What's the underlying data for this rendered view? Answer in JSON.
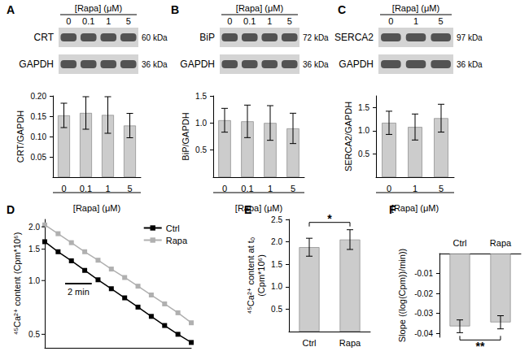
{
  "blots": [
    {
      "header": "[Rapa] (μM)",
      "lanes": [
        "0",
        "0.1",
        "1",
        "5"
      ],
      "rows": [
        {
          "protein": "CRT",
          "size": "60 kDa"
        },
        {
          "protein": "GAPDH",
          "size": "36 kDa"
        }
      ]
    },
    {
      "header": "[Rapa] (μM)",
      "lanes": [
        "0",
        "0.1",
        "1",
        "5"
      ],
      "rows": [
        {
          "protein": "BiP",
          "size": "72 kDa"
        },
        {
          "protein": "GAPDH",
          "size": "36 kDa"
        }
      ]
    },
    {
      "header": "[Rapa] (μM)",
      "lanes": [
        "0",
        "1",
        "5"
      ],
      "rows": [
        {
          "protein": "SERCA2",
          "size": "97 kDa"
        },
        {
          "protein": "GAPDH",
          "size": "36 kDa"
        }
      ]
    }
  ],
  "chart_data": [
    {
      "panel": "A",
      "type": "bar",
      "categories": [
        "0",
        "0.1",
        "1",
        "5"
      ],
      "values": [
        0.152,
        0.158,
        0.153,
        0.127
      ],
      "errors": [
        0.03,
        0.04,
        0.045,
        0.03
      ],
      "color": "#cccccc",
      "ylabel": "CRT/GAPDH",
      "xlabel": "[Rapa] (μM)",
      "ylim": [
        0,
        0.2
      ],
      "yticks": [
        0.05,
        {
          "value": 0.1,
          "label": "0.10"
        },
        0.15,
        {
          "value": 0.2,
          "label": "0.20"
        }
      ],
      "grid": false
    },
    {
      "panel": "B",
      "type": "bar",
      "categories": [
        "0",
        "0.1",
        "1",
        "5"
      ],
      "values": [
        1.05,
        1.03,
        1.0,
        0.9
      ],
      "errors": [
        0.22,
        0.3,
        0.32,
        0.28
      ],
      "color": "#cccccc",
      "ylabel": "BiP/GAPDH",
      "xlabel": "[Rapa] (μM)",
      "ylim": [
        0,
        1.5
      ],
      "yticks": [
        0.5,
        {
          "value": 1,
          "label": "1.0"
        },
        1.5
      ],
      "grid": false
    },
    {
      "panel": "C",
      "type": "bar",
      "categories": [
        "0",
        "1",
        "5"
      ],
      "values": [
        1.17,
        1.08,
        1.27
      ],
      "errors": [
        0.25,
        0.28,
        0.3
      ],
      "color": "#cccccc",
      "ylabel": "SERCA2/GAPDH",
      "xlabel": "[Rapa] (μM)",
      "ylim": [
        0,
        1.75
      ],
      "yticks": [
        0.5,
        {
          "value": 1,
          "label": "1.0"
        },
        1.5
      ],
      "grid": false
    },
    {
      "panel": "D",
      "type": "line",
      "log": "y",
      "x": [
        0,
        1,
        2,
        3,
        4,
        5,
        6,
        7,
        8,
        9,
        10,
        11
      ],
      "xlim": [
        0,
        11
      ],
      "series": [
        {
          "name": "Ctrl",
          "color": "#000000",
          "marker": "square",
          "line_style": "solid",
          "values": [
            1.65,
            1.45,
            1.29,
            1.14,
            1.01,
            0.9,
            0.8,
            0.71,
            0.63,
            0.56,
            0.5,
            0.45
          ]
        },
        {
          "name": "Rapa",
          "color": "#b0b0b0",
          "marker": "square",
          "line_style": "solid",
          "values": [
            2.05,
            1.83,
            1.63,
            1.45,
            1.3,
            1.16,
            1.04,
            0.93,
            0.83,
            0.74,
            0.66,
            0.58
          ]
        }
      ],
      "ylabel": "⁴⁵Ca²⁺ content (Cpm*10⁶)",
      "ylim": [
        0.42,
        2.2
      ],
      "yticks": [
        0.5,
        {
          "value": 1,
          "label": "1.0"
        },
        1.5,
        {
          "value": 2,
          "label": "2.0"
        }
      ],
      "tick_labels": "y",
      "legend": "upper right",
      "grid": false,
      "scale_bar": {
        "label": "2 min",
        "length": 2
      }
    },
    {
      "panel": "E",
      "type": "bar",
      "categories": [
        "Ctrl",
        "Rapa"
      ],
      "values": [
        1.88,
        2.05
      ],
      "errors": [
        0.2,
        0.22
      ],
      "color": "#cccccc",
      "ylabel": "⁴⁵Ca²⁺ content at t₀\n(Cpm*10⁶)",
      "ylim": [
        0,
        2.5
      ],
      "yticks": [
        0.5,
        {
          "value": 1,
          "label": "1.0"
        },
        1.5,
        {
          "value": 2,
          "label": "2.0"
        },
        2.5
      ],
      "grid": false,
      "annotations": [
        {
          "text": "*",
          "from": "Ctrl",
          "to": "Rapa"
        }
      ]
    },
    {
      "panel": "F",
      "type": "bar",
      "categories": [
        "Ctrl",
        "Rapa"
      ],
      "values": [
        -0.0365,
        -0.0345
      ],
      "errors": [
        0.0032,
        0.0033
      ],
      "color": "#cccccc",
      "ylabel": "Slope ((log(Cpm))/min))",
      "ylim": [
        -0.042,
        0
      ],
      "yticks": [
        -0.04,
        -0.03,
        -0.02,
        -0.01
      ],
      "grid": false,
      "annotations": [
        {
          "text": "**",
          "from": "Ctrl",
          "to": "Rapa"
        }
      ]
    }
  ]
}
